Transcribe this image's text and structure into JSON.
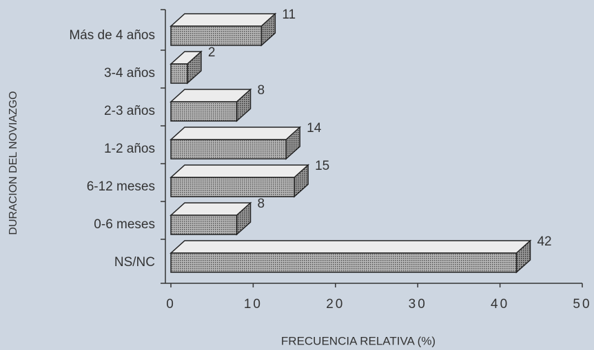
{
  "chart_data": {
    "type": "bar3d_horizontal",
    "categories": [
      "Más de 4 años",
      "3-4 años",
      "2-3 años",
      "1-2 años",
      "6-12 meses",
      "0-6 meses",
      "NS/NC"
    ],
    "values": [
      11,
      2,
      8,
      14,
      15,
      8,
      42
    ],
    "xlim": [
      0,
      50
    ],
    "xticks": [
      0,
      10,
      20,
      30,
      40,
      50
    ],
    "xlabel": "FRECUENCIA RELATIVA (%)",
    "ylabel": "DURACION DEL NOVIAZGO",
    "color": "#9c9c9c"
  }
}
